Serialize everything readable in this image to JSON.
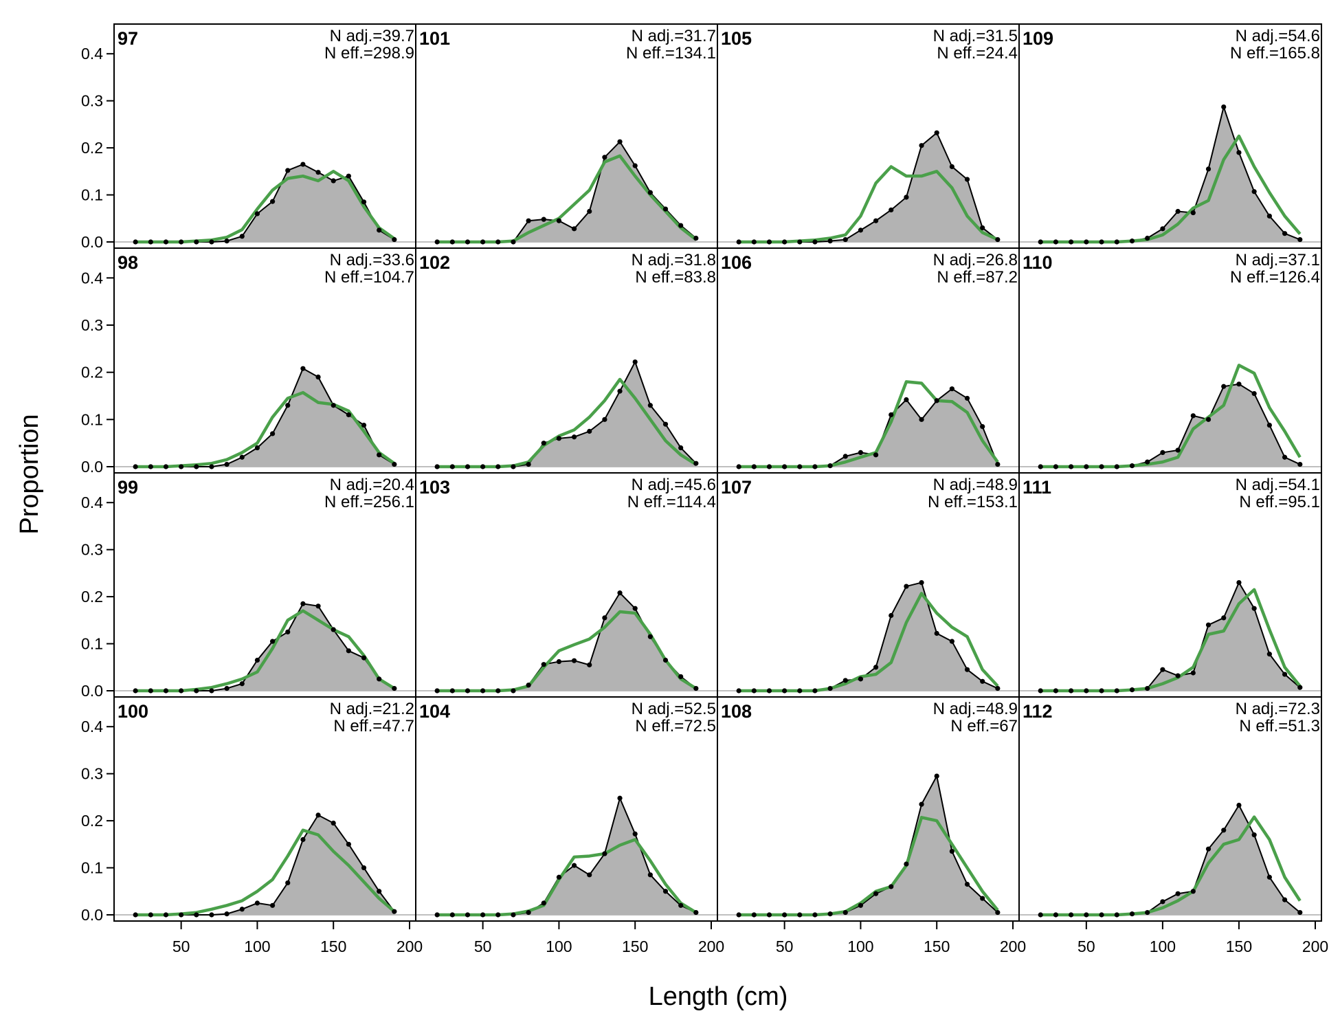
{
  "figure": {
    "xlabel": "Length (cm)",
    "ylabel": "Proportion"
  },
  "chart_data": {
    "type": "area",
    "x": [
      20,
      30,
      40,
      50,
      60,
      70,
      80,
      90,
      100,
      110,
      120,
      130,
      140,
      150,
      160,
      170,
      180,
      190
    ],
    "xlim": [
      10,
      200
    ],
    "ylim": [
      0,
      0.45
    ],
    "xticks": [
      "50",
      "100",
      "150",
      "200"
    ],
    "yticks": [
      "0.0",
      "0.1",
      "0.2",
      "0.3",
      "0.4"
    ],
    "grid": false,
    "colors": {
      "observed_fill": "#b3b3b3",
      "observed_line": "#000000",
      "expected_line": "#4aa04a",
      "zero_line": "#bfbfbf"
    },
    "panels": [
      {
        "id": "97",
        "n_adj": "N adj.=39.7",
        "n_eff": "N eff.=298.9",
        "observed": [
          0,
          0,
          0,
          0,
          0,
          0,
          0.002,
          0.012,
          0.06,
          0.086,
          0.152,
          0.165,
          0.148,
          0.13,
          0.14,
          0.085,
          0.025,
          0.005
        ],
        "expected": [
          0,
          0,
          0,
          0,
          0.002,
          0.004,
          0.01,
          0.026,
          0.07,
          0.11,
          0.135,
          0.14,
          0.13,
          0.15,
          0.13,
          0.075,
          0.03,
          0.007
        ]
      },
      {
        "id": "98",
        "n_adj": "N adj.=33.6",
        "n_eff": "N eff.=104.7",
        "observed": [
          0,
          0,
          0,
          0,
          0,
          0,
          0.005,
          0.02,
          0.04,
          0.07,
          0.13,
          0.208,
          0.19,
          0.13,
          0.11,
          0.088,
          0.025,
          0.005
        ],
        "expected": [
          0,
          0,
          0,
          0.002,
          0.004,
          0.007,
          0.015,
          0.03,
          0.05,
          0.105,
          0.145,
          0.157,
          0.136,
          0.132,
          0.118,
          0.075,
          0.03,
          0.007
        ]
      },
      {
        "id": "99",
        "n_adj": "N adj.=20.4",
        "n_eff": "N eff.=256.1",
        "observed": [
          0,
          0,
          0,
          0,
          0,
          0,
          0.005,
          0.015,
          0.065,
          0.105,
          0.125,
          0.185,
          0.18,
          0.13,
          0.085,
          0.07,
          0.025,
          0.005
        ],
        "expected": [
          0,
          0,
          0,
          0,
          0.003,
          0.007,
          0.015,
          0.025,
          0.04,
          0.09,
          0.15,
          0.17,
          0.15,
          0.13,
          0.115,
          0.075,
          0.025,
          0.005
        ]
      },
      {
        "id": "100",
        "n_adj": "N adj.=21.2",
        "n_eff": "N eff.=47.7",
        "observed": [
          0,
          0,
          0,
          0,
          0,
          0,
          0.002,
          0.012,
          0.025,
          0.02,
          0.068,
          0.16,
          0.212,
          0.195,
          0.15,
          0.1,
          0.05,
          0.007
        ],
        "expected": [
          0,
          0,
          0,
          0.002,
          0.005,
          0.012,
          0.02,
          0.03,
          0.05,
          0.075,
          0.125,
          0.18,
          0.17,
          0.135,
          0.105,
          0.07,
          0.035,
          0.007
        ]
      },
      {
        "id": "101",
        "n_adj": "N adj.=31.7",
        "n_eff": "N eff.=134.1",
        "observed": [
          0,
          0,
          0,
          0,
          0,
          0,
          0.045,
          0.048,
          0.045,
          0.028,
          0.065,
          0.18,
          0.213,
          0.162,
          0.105,
          0.07,
          0.035,
          0.008
        ],
        "expected": [
          0,
          0,
          0,
          0,
          0,
          0.002,
          0.02,
          0.035,
          0.05,
          0.08,
          0.11,
          0.17,
          0.183,
          0.14,
          0.1,
          0.065,
          0.03,
          0.005
        ]
      },
      {
        "id": "102",
        "n_adj": "N adj.=31.8",
        "n_eff": "N eff.=83.8",
        "observed": [
          0,
          0,
          0,
          0,
          0,
          0,
          0.005,
          0.05,
          0.06,
          0.063,
          0.075,
          0.1,
          0.16,
          0.222,
          0.13,
          0.09,
          0.04,
          0.007
        ],
        "expected": [
          0,
          0,
          0,
          0,
          0,
          0.002,
          0.01,
          0.045,
          0.065,
          0.078,
          0.105,
          0.14,
          0.185,
          0.145,
          0.1,
          0.055,
          0.025,
          0.005
        ]
      },
      {
        "id": "103",
        "n_adj": "N adj.=45.6",
        "n_eff": "N eff.=114.4",
        "observed": [
          0,
          0,
          0,
          0,
          0,
          0,
          0.012,
          0.056,
          0.062,
          0.064,
          0.055,
          0.155,
          0.208,
          0.175,
          0.115,
          0.065,
          0.03,
          0.005
        ],
        "expected": [
          0,
          0,
          0,
          0,
          0,
          0.002,
          0.01,
          0.05,
          0.085,
          0.098,
          0.11,
          0.135,
          0.168,
          0.165,
          0.12,
          0.065,
          0.025,
          0.005
        ]
      },
      {
        "id": "104",
        "n_adj": "N adj.=52.5",
        "n_eff": "N eff.=72.5",
        "observed": [
          0,
          0,
          0,
          0,
          0,
          0,
          0.005,
          0.025,
          0.08,
          0.105,
          0.085,
          0.13,
          0.248,
          0.172,
          0.085,
          0.05,
          0.02,
          0.005
        ],
        "expected": [
          0,
          0,
          0,
          0,
          0,
          0.002,
          0.008,
          0.02,
          0.075,
          0.123,
          0.125,
          0.13,
          0.148,
          0.16,
          0.115,
          0.065,
          0.025,
          0.005
        ]
      },
      {
        "id": "105",
        "n_adj": "N adj.=31.5",
        "n_eff": "N eff.=24.4",
        "observed": [
          0,
          0,
          0,
          0,
          0,
          0,
          0.002,
          0.005,
          0.025,
          0.045,
          0.068,
          0.095,
          0.205,
          0.232,
          0.16,
          0.133,
          0.03,
          0.005
        ],
        "expected": [
          0,
          0,
          0,
          0,
          0.002,
          0.004,
          0.008,
          0.015,
          0.055,
          0.125,
          0.16,
          0.14,
          0.14,
          0.15,
          0.115,
          0.055,
          0.02,
          0.005
        ]
      },
      {
        "id": "106",
        "n_adj": "N adj.=26.8",
        "n_eff": "N eff.=87.2",
        "observed": [
          0,
          0,
          0,
          0,
          0,
          0,
          0.002,
          0.022,
          0.03,
          0.025,
          0.11,
          0.142,
          0.1,
          0.14,
          0.165,
          0.145,
          0.085,
          0.005
        ],
        "expected": [
          0,
          0,
          0,
          0,
          0,
          0,
          0.002,
          0.01,
          0.02,
          0.03,
          0.095,
          0.18,
          0.177,
          0.14,
          0.138,
          0.115,
          0.055,
          0.01
        ]
      },
      {
        "id": "107",
        "n_adj": "N adj.=48.9",
        "n_eff": "N eff.=153.1",
        "observed": [
          0,
          0,
          0,
          0,
          0,
          0,
          0.005,
          0.022,
          0.025,
          0.05,
          0.16,
          0.222,
          0.23,
          0.122,
          0.105,
          0.045,
          0.02,
          0.005
        ],
        "expected": [
          0,
          0,
          0,
          0,
          0,
          0,
          0.005,
          0.015,
          0.03,
          0.035,
          0.06,
          0.145,
          0.207,
          0.165,
          0.135,
          0.115,
          0.045,
          0.01
        ]
      },
      {
        "id": "108",
        "n_adj": "N adj.=48.9",
        "n_eff": "N eff.=67",
        "observed": [
          0,
          0,
          0,
          0,
          0,
          0,
          0.002,
          0.005,
          0.02,
          0.045,
          0.06,
          0.108,
          0.235,
          0.295,
          0.135,
          0.065,
          0.035,
          0.005
        ],
        "expected": [
          0,
          0,
          0,
          0,
          0,
          0,
          0.002,
          0.007,
          0.025,
          0.05,
          0.06,
          0.105,
          0.207,
          0.2,
          0.15,
          0.1,
          0.05,
          0.01
        ]
      },
      {
        "id": "109",
        "n_adj": "N adj.=54.6",
        "n_eff": "N eff.=165.8",
        "observed": [
          0,
          0,
          0,
          0,
          0,
          0,
          0.002,
          0.008,
          0.028,
          0.065,
          0.062,
          0.155,
          0.287,
          0.19,
          0.107,
          0.055,
          0.018,
          0.005
        ],
        "expected": [
          0,
          0,
          0,
          0,
          0,
          0,
          0.002,
          0.005,
          0.015,
          0.038,
          0.072,
          0.088,
          0.175,
          0.225,
          0.16,
          0.105,
          0.055,
          0.017
        ]
      },
      {
        "id": "110",
        "n_adj": "N adj.=37.1",
        "n_eff": "N eff.=126.4",
        "observed": [
          0,
          0,
          0,
          0,
          0,
          0,
          0.002,
          0.01,
          0.03,
          0.035,
          0.108,
          0.1,
          0.17,
          0.175,
          0.155,
          0.088,
          0.02,
          0.005
        ],
        "expected": [
          0,
          0,
          0,
          0,
          0,
          0,
          0.002,
          0.005,
          0.01,
          0.02,
          0.08,
          0.105,
          0.13,
          0.215,
          0.198,
          0.125,
          0.075,
          0.02
        ]
      },
      {
        "id": "111",
        "n_adj": "N adj.=54.1",
        "n_eff": "N eff.=95.1",
        "observed": [
          0,
          0,
          0,
          0,
          0,
          0,
          0.002,
          0.005,
          0.045,
          0.032,
          0.038,
          0.14,
          0.155,
          0.23,
          0.175,
          0.078,
          0.035,
          0.007
        ],
        "expected": [
          0,
          0,
          0,
          0,
          0,
          0,
          0.002,
          0.005,
          0.015,
          0.028,
          0.05,
          0.12,
          0.127,
          0.185,
          0.215,
          0.13,
          0.05,
          0.01
        ]
      },
      {
        "id": "112",
        "n_adj": "N adj.=72.3",
        "n_eff": "N eff.=51.3",
        "observed": [
          0,
          0,
          0,
          0,
          0,
          0,
          0.002,
          0.005,
          0.028,
          0.045,
          0.05,
          0.14,
          0.18,
          0.233,
          0.17,
          0.08,
          0.032,
          0.005
        ],
        "expected": [
          0,
          0,
          0,
          0,
          0,
          0,
          0.002,
          0.005,
          0.015,
          0.03,
          0.05,
          0.11,
          0.15,
          0.16,
          0.208,
          0.16,
          0.08,
          0.03
        ]
      }
    ]
  }
}
